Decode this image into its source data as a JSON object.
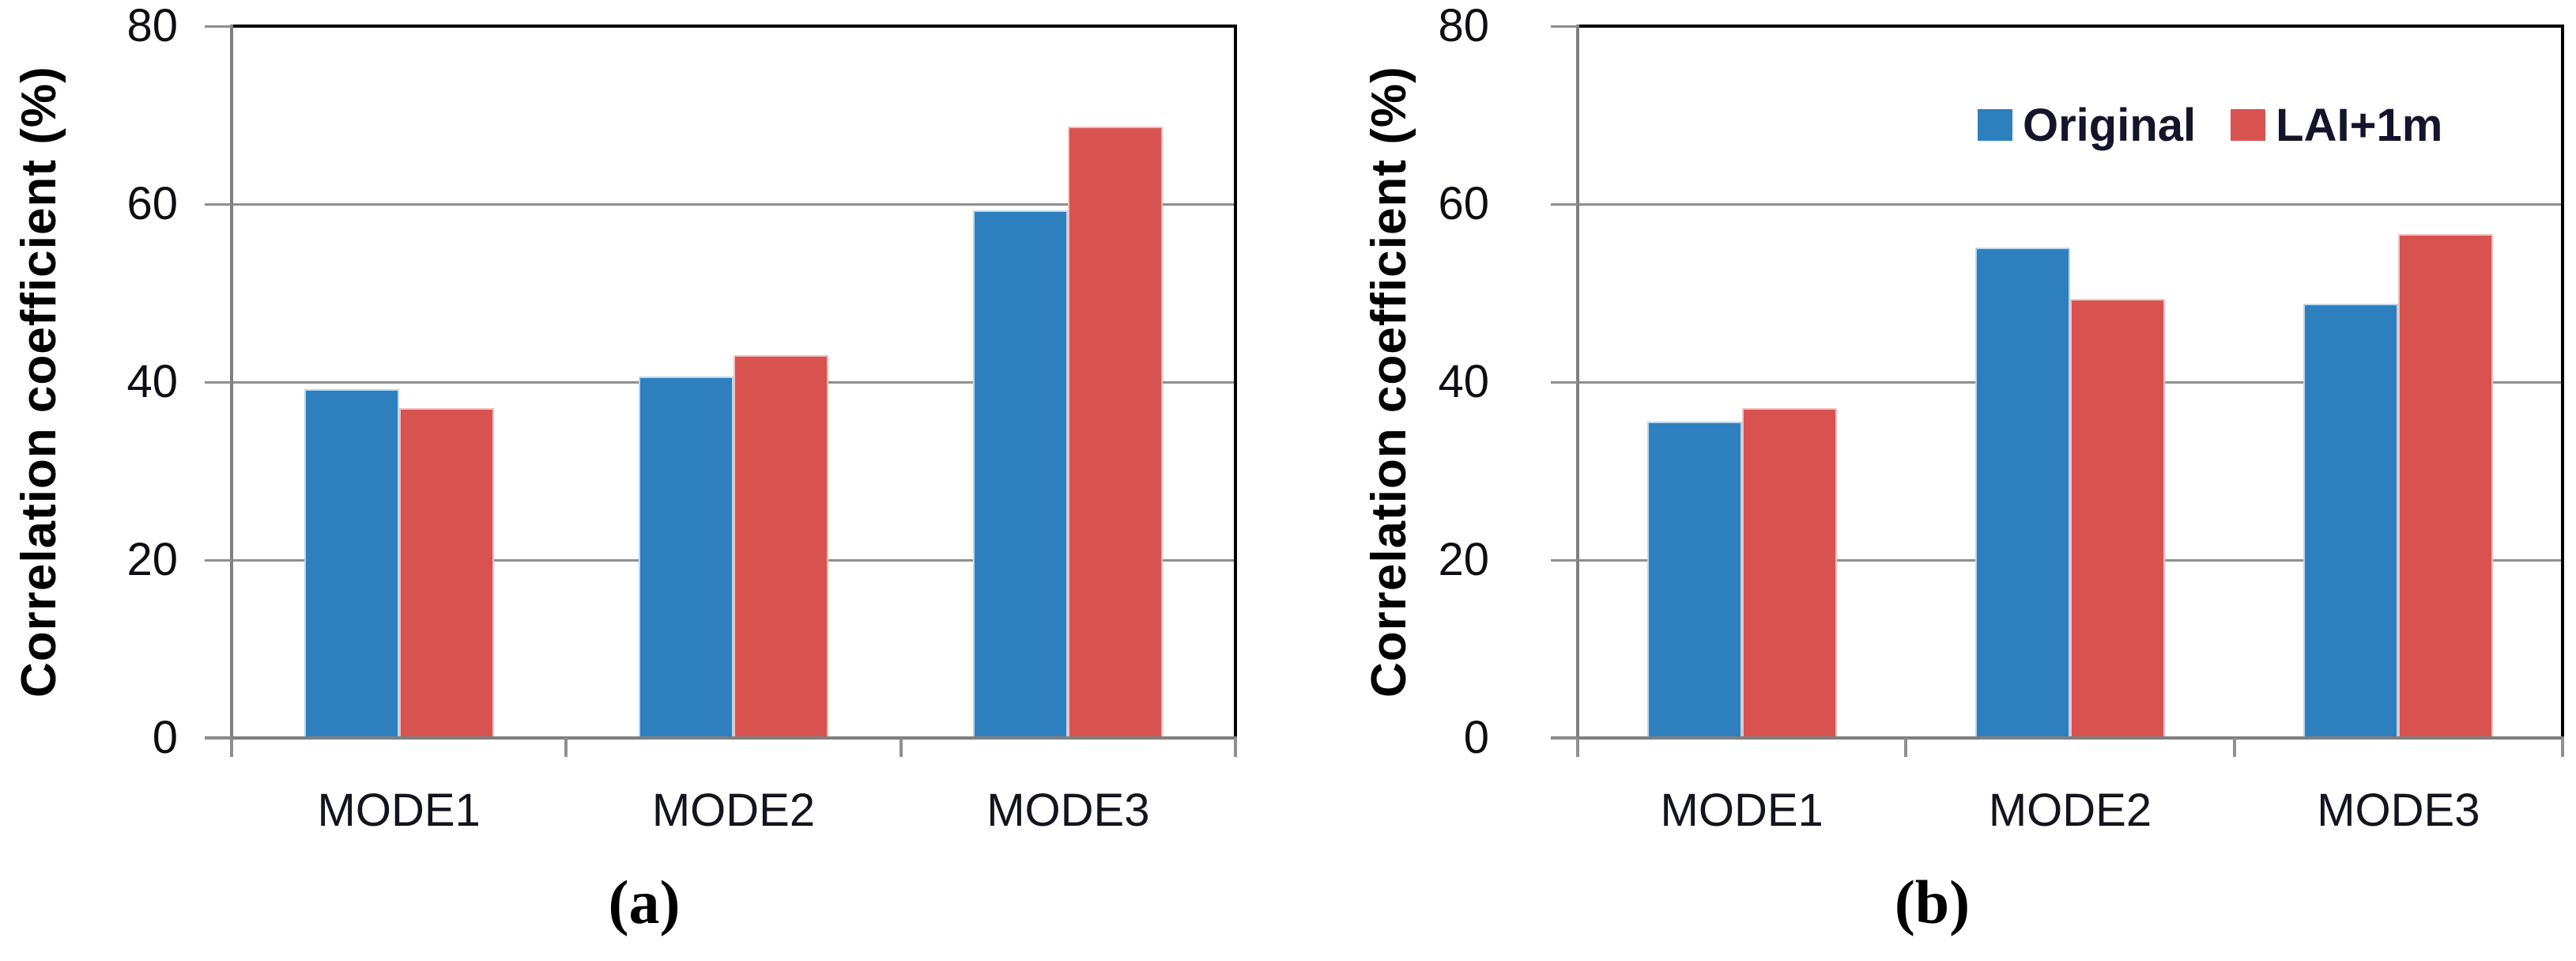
{
  "figure": {
    "caption_a": "(a)",
    "caption_b": "(b)"
  },
  "legend": {
    "items": [
      {
        "label": "Original"
      },
      {
        "label": "LAI+1m"
      }
    ]
  },
  "series_styles": [
    {
      "name": "Original",
      "fill": "#2E7FBE",
      "edge": "#BCD7EE"
    },
    {
      "name": "LAI+1m",
      "fill": "#D8534F",
      "edge": "#F2C0BF"
    }
  ],
  "colors": {
    "gridline": "#8f8f8f",
    "axis": "#7f7f7f",
    "plot_border": "#000000",
    "tick_label": "#0d0d14",
    "legend_text": "#14142b"
  },
  "chart_data": [
    {
      "type": "bar",
      "panel": "a",
      "ylabel": "Correlation coefficient  (%)",
      "categories": [
        "MODE1",
        "MODE2",
        "MODE3"
      ],
      "series": [
        {
          "name": "Original",
          "values": [
            39.2,
            40.6,
            59.3
          ]
        },
        {
          "name": "LAI+1m",
          "values": [
            37.1,
            43.0,
            68.7
          ]
        }
      ],
      "ylim": [
        0,
        80
      ],
      "yticks": [
        0,
        20,
        40,
        60,
        80
      ],
      "grid": true,
      "legend": false
    },
    {
      "type": "bar",
      "panel": "b",
      "ylabel": "Correlation coefficient  (%)",
      "categories": [
        "MODE1",
        "MODE2",
        "MODE3"
      ],
      "series": [
        {
          "name": "Original",
          "values": [
            35.6,
            55.1,
            48.8
          ]
        },
        {
          "name": "LAI+1m",
          "values": [
            37.1,
            49.3,
            56.6
          ]
        }
      ],
      "ylim": [
        0,
        80
      ],
      "yticks": [
        0,
        20,
        40,
        60,
        80
      ],
      "grid": true,
      "legend": true,
      "legend_position": "top-right"
    }
  ]
}
